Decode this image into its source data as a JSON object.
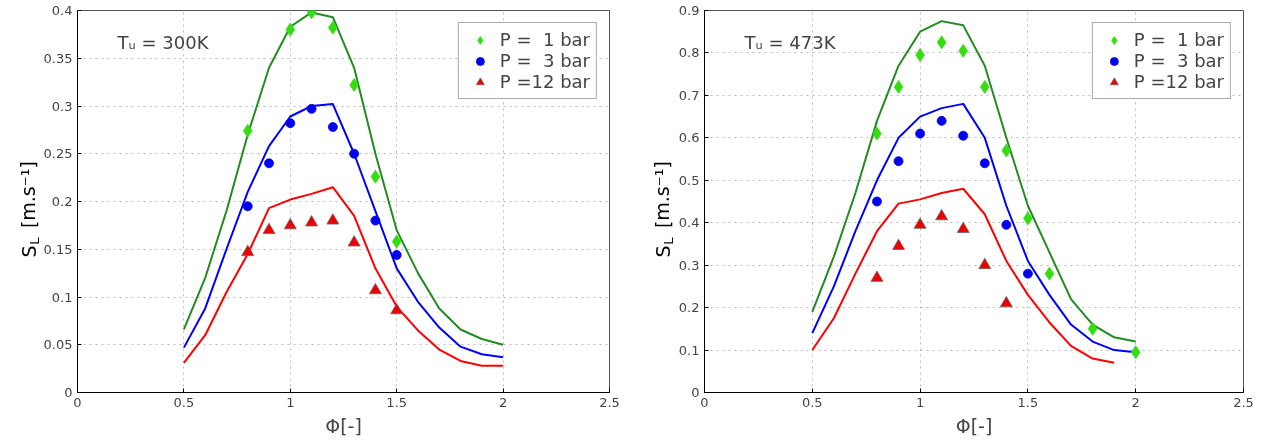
{
  "chart_data": [
    {
      "type": "line",
      "xlabel": "Φ[-]",
      "ylabel": "S$_{L}$ [m.s⁻¹]",
      "annotations": [
        "Tᵤ = 300K"
      ],
      "xlim": [
        0,
        2.5
      ],
      "ylim": [
        0,
        0.4
      ],
      "xticks": [
        0,
        0.5,
        1,
        1.5,
        2,
        2.5
      ],
      "yticks": [
        0,
        0.05,
        0.1,
        0.15,
        0.2,
        0.25,
        0.3,
        0.35,
        0.4
      ],
      "grid": true,
      "legend": "top right",
      "line_style": "solid",
      "series": [
        {
          "type": "line",
          "color": "#228b22",
          "x": [
            0.5,
            0.6,
            0.7,
            0.8,
            0.9,
            1.0,
            1.1,
            1.2,
            1.3,
            1.4,
            1.5,
            1.6,
            1.7,
            1.8,
            1.9,
            2.0
          ],
          "values": [
            0.066,
            0.12,
            0.19,
            0.27,
            0.34,
            0.383,
            0.398,
            0.393,
            0.34,
            0.25,
            0.17,
            0.125,
            0.088,
            0.066,
            0.056,
            0.05
          ]
        },
        {
          "type": "line",
          "color": "#0000ff",
          "x": [
            0.5,
            0.6,
            0.7,
            0.8,
            0.9,
            1.0,
            1.1,
            1.2,
            1.3,
            1.4,
            1.5,
            1.6,
            1.7,
            1.8,
            1.9,
            2.0
          ],
          "values": [
            0.047,
            0.088,
            0.15,
            0.21,
            0.258,
            0.289,
            0.3,
            0.302,
            0.25,
            0.19,
            0.13,
            0.095,
            0.068,
            0.048,
            0.04,
            0.037
          ]
        },
        {
          "type": "line",
          "color": "#ff0000",
          "x": [
            0.5,
            0.6,
            0.7,
            0.8,
            0.9,
            1.0,
            1.1,
            1.2,
            1.3,
            1.4,
            1.5,
            1.6,
            1.7,
            1.8,
            1.9,
            2.0
          ],
          "values": [
            0.031,
            0.06,
            0.105,
            0.145,
            0.193,
            0.202,
            0.208,
            0.215,
            0.185,
            0.13,
            0.09,
            0.065,
            0.045,
            0.033,
            0.028,
            0.028
          ]
        },
        {
          "type": "scatter",
          "name": "P =  1 bar",
          "marker": "diamond",
          "color": "#33dd11",
          "x": [
            0.8,
            1.0,
            1.1,
            1.2,
            1.3,
            1.4,
            1.5
          ],
          "values": [
            0.274,
            0.38,
            0.398,
            0.382,
            0.322,
            0.226,
            0.158
          ]
        },
        {
          "type": "scatter",
          "name": "P =  3 bar",
          "marker": "circle",
          "color": "#0000ee",
          "x": [
            0.8,
            0.9,
            1.0,
            1.1,
            1.2,
            1.3,
            1.4,
            1.5
          ],
          "values": [
            0.195,
            0.24,
            0.282,
            0.297,
            0.278,
            0.25,
            0.18,
            0.144
          ]
        },
        {
          "type": "scatter",
          "name": "P =12 bar",
          "marker": "triangle",
          "color": "#ee0000",
          "x": [
            0.8,
            0.9,
            1.0,
            1.1,
            1.2,
            1.3,
            1.4,
            1.5
          ],
          "values": [
            0.147,
            0.17,
            0.175,
            0.178,
            0.18,
            0.157,
            0.107,
            0.086
          ]
        }
      ]
    },
    {
      "type": "line",
      "xlabel": "Φ[-]",
      "ylabel": "S$_{L}$ [m.s⁻¹]",
      "annotations": [
        "Tᵤ = 473K"
      ],
      "xlim": [
        0,
        2.5
      ],
      "ylim": [
        0,
        0.9
      ],
      "xticks": [
        0,
        0.5,
        1,
        1.5,
        2,
        2.5
      ],
      "yticks": [
        0,
        0.1,
        0.2,
        0.3,
        0.4,
        0.5,
        0.6,
        0.7,
        0.8,
        0.9
      ],
      "grid": true,
      "legend": "top right",
      "line_style": "solid",
      "series": [
        {
          "type": "line",
          "color": "#228b22",
          "x": [
            0.5,
            0.6,
            0.7,
            0.8,
            0.9,
            1.0,
            1.1,
            1.2,
            1.3,
            1.4,
            1.5,
            1.6,
            1.7,
            1.8,
            1.9,
            2.0
          ],
          "values": [
            0.19,
            0.32,
            0.47,
            0.64,
            0.77,
            0.85,
            0.875,
            0.865,
            0.77,
            0.6,
            0.44,
            0.33,
            0.22,
            0.16,
            0.13,
            0.12
          ]
        },
        {
          "type": "line",
          "color": "#0000ff",
          "x": [
            0.5,
            0.6,
            0.7,
            0.8,
            0.9,
            1.0,
            1.1,
            1.2,
            1.3,
            1.4,
            1.5,
            1.6,
            1.7,
            1.8,
            1.9,
            2.0
          ],
          "values": [
            0.14,
            0.25,
            0.38,
            0.5,
            0.6,
            0.65,
            0.67,
            0.68,
            0.6,
            0.44,
            0.31,
            0.23,
            0.16,
            0.12,
            0.1,
            0.095
          ]
        },
        {
          "type": "line",
          "color": "#ff0000",
          "x": [
            0.5,
            0.6,
            0.7,
            0.8,
            0.9,
            1.0,
            1.1,
            1.2,
            1.3,
            1.4,
            1.5,
            1.6,
            1.7,
            1.8,
            1.9
          ],
          "values": [
            0.1,
            0.175,
            0.28,
            0.38,
            0.445,
            0.455,
            0.47,
            0.48,
            0.42,
            0.31,
            0.23,
            0.165,
            0.11,
            0.08,
            0.07
          ]
        },
        {
          "type": "scatter",
          "name": "P =  1 bar",
          "marker": "diamond",
          "color": "#33dd11",
          "x": [
            0.8,
            0.9,
            1.0,
            1.1,
            1.2,
            1.3,
            1.4,
            1.5,
            1.6,
            1.8,
            2.0
          ],
          "values": [
            0.61,
            0.72,
            0.795,
            0.825,
            0.805,
            0.72,
            0.57,
            0.41,
            0.28,
            0.15,
            0.095
          ]
        },
        {
          "type": "scatter",
          "name": "P =  3 bar",
          "marker": "circle",
          "color": "#0000ee",
          "x": [
            0.8,
            0.9,
            1.0,
            1.1,
            1.2,
            1.3,
            1.4,
            1.5
          ],
          "values": [
            0.45,
            0.545,
            0.61,
            0.64,
            0.605,
            0.54,
            0.395,
            0.28
          ]
        },
        {
          "type": "scatter",
          "name": "P =12 bar",
          "marker": "triangle",
          "color": "#ee0000",
          "x": [
            0.8,
            0.9,
            1.0,
            1.1,
            1.2,
            1.3,
            1.4
          ],
          "values": [
            0.27,
            0.345,
            0.395,
            0.415,
            0.385,
            0.3,
            0.21
          ]
        }
      ]
    }
  ]
}
